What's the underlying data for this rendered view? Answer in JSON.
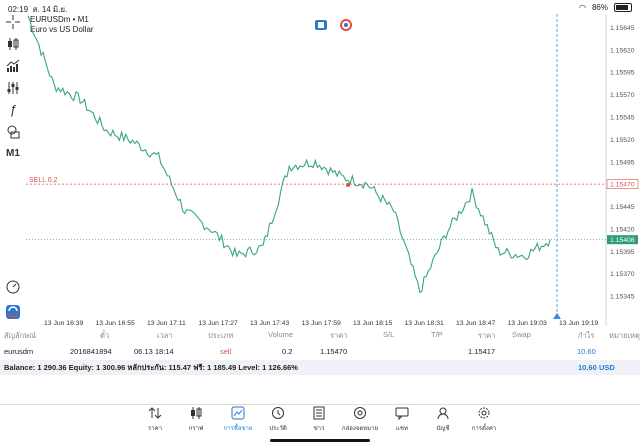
{
  "status_bar": {
    "time": "02:19",
    "date": "ส. 14 มิ.ย.",
    "battery": "86%"
  },
  "symbol": {
    "name": "EURUSDm • M1",
    "description": "Euro vs US Dollar"
  },
  "toolbar": {
    "timeframe": "M1"
  },
  "chart": {
    "y_ticks": [
      "1.15645",
      "1.15620",
      "1.15595",
      "1.15570",
      "1.15545",
      "1.15520",
      "1.15495",
      "1.15470",
      "1.15445",
      "1.15420",
      "1.15395",
      "1.15370",
      "1.15345"
    ],
    "x_ticks": [
      "13 Jun 16:39",
      "13 Jun 16:55",
      "13 Jun 17:11",
      "13 Jun 17:27",
      "13 Jun 17:43",
      "13 Jun 17:59",
      "13 Jun 18:15",
      "13 Jun 18:31",
      "13 Jun 18:47",
      "13 Jun 19:03",
      "13 Jun 19:19"
    ],
    "order_label": "SELL 0.2",
    "order_price": "1.15470",
    "current_price": "1.15408",
    "colors": {
      "line": "#3aa57a",
      "order": "#d9534f",
      "bid": "#2f9e77",
      "crosshair": "#3b8ad9"
    }
  },
  "chart_data": {
    "type": "line",
    "x": [
      "16:31",
      "16:39",
      "16:47",
      "16:55",
      "17:03",
      "17:11",
      "17:19",
      "17:27",
      "17:35",
      "17:43",
      "17:51",
      "17:59",
      "18:07",
      "18:15",
      "18:23",
      "18:31",
      "18:39",
      "18:47",
      "18:55",
      "19:03",
      "19:11"
    ],
    "values": [
      1.15658,
      1.1558,
      1.15565,
      1.1553,
      1.15518,
      1.155,
      1.1544,
      1.1542,
      1.1539,
      1.154,
      1.1549,
      1.15495,
      1.15478,
      1.1547,
      1.1544,
      1.1535,
      1.15415,
      1.1546,
      1.15395,
      1.1539,
      1.15408
    ],
    "ylim": [
      1.15325,
      1.1566
    ]
  },
  "positions": {
    "headers": [
      "สัญลักษณ์",
      "ตั๋ว",
      "เวลา",
      "ประเภท",
      "Volume",
      "ราคา",
      "S/L",
      "T/P",
      "ราคา",
      "Swap",
      "กำไร",
      "หมายเหตุ"
    ],
    "row": {
      "symbol": "eurusdm",
      "ticket": "2016841894",
      "time": "06.13 18:14",
      "type": "sell",
      "volume": "0.2",
      "open_price": "1.15470",
      "sl": "",
      "tp": "",
      "price": "1.15417",
      "swap": "",
      "profit": "10.60",
      "comment": ""
    }
  },
  "balance": {
    "text": "Balance: 1 290.36 Equity: 1 300.96 หลักประกัน: 115.47 ฟรี: 1 185.49 Level: 1 126.66%",
    "profit": "10.60",
    "currency": "USD"
  },
  "nav": {
    "items": [
      "ราคา",
      "กราฟ",
      "การซื้อขาย",
      "ประวัติ",
      "ข่าว",
      "กล่องจดหมาย",
      "แชท",
      "บัญชี",
      "การตั้งค่า"
    ]
  }
}
